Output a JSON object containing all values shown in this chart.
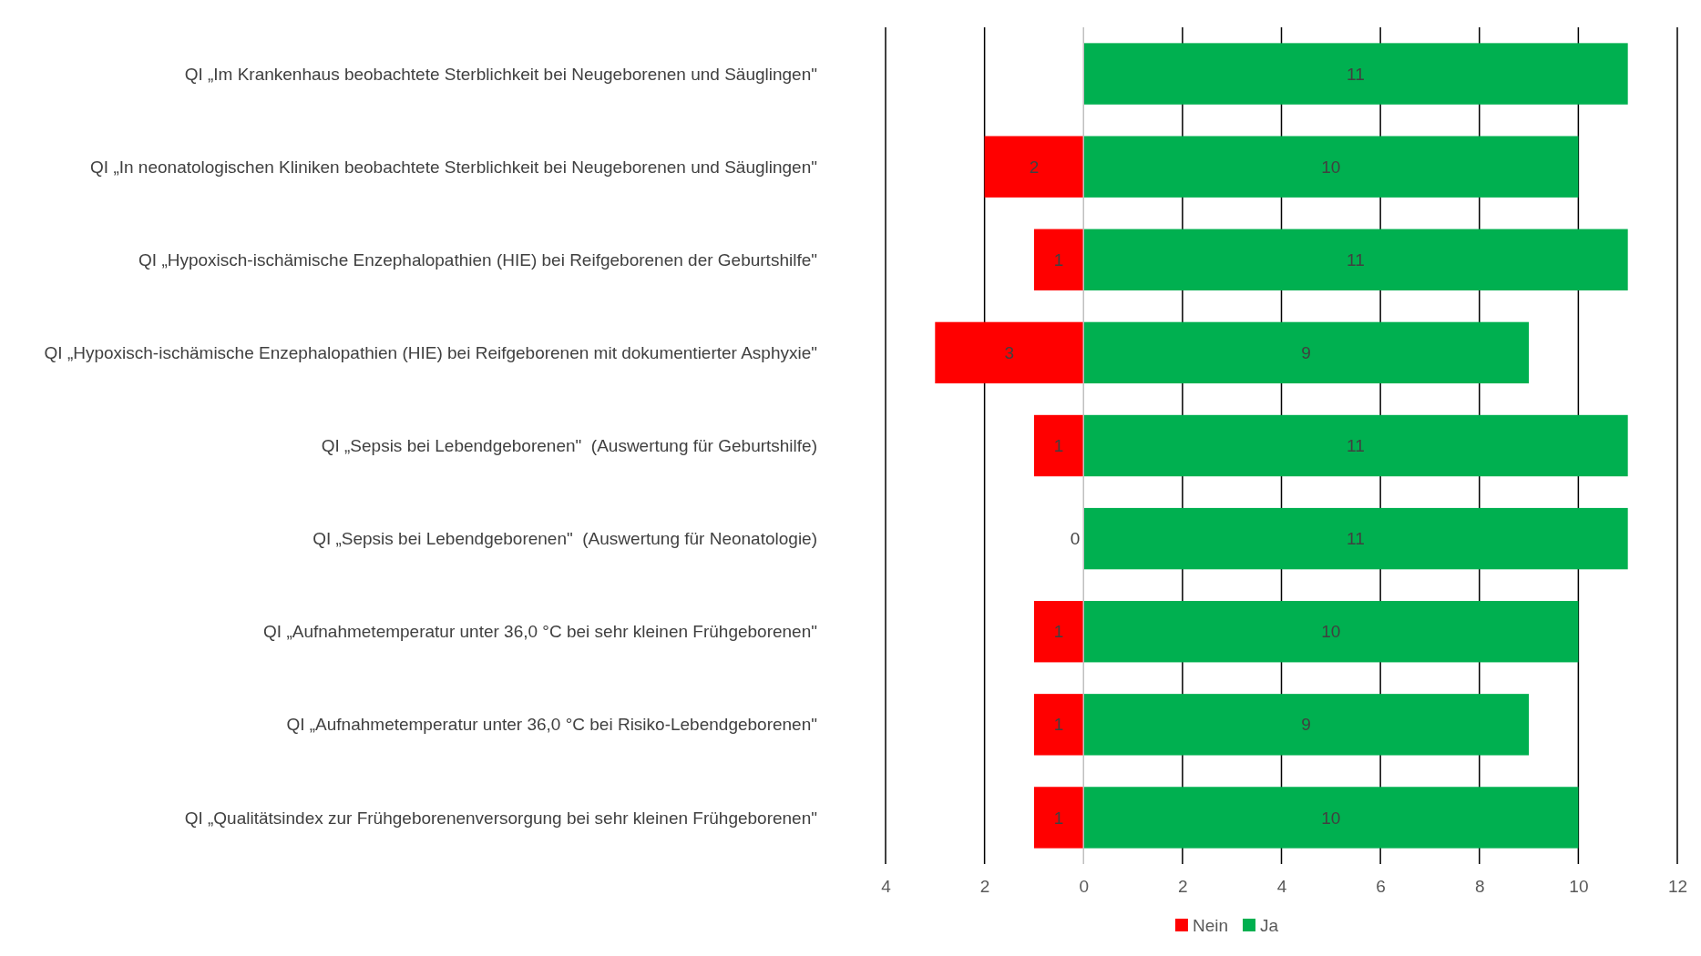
{
  "chart_data": {
    "type": "bar",
    "orientation": "horizontal",
    "categories": [
      "QI „Im Krankenhaus beobachtete Sterblichkeit bei Neugeborenen und Säuglingen\"",
      "QI „In neonatologischen Kliniken beobachtete Sterblichkeit bei Neugeborenen und Säuglingen\"",
      "QI „Hypoxisch-ischämische Enzephalopathien (HIE) bei Reifgeborenen der Geburtshilfe\"",
      "QI „Hypoxisch-ischämische Enzephalopathien (HIE) bei Reifgeborenen mit dokumentierter Asphyxie\"",
      "QI „Sepsis bei Lebendgeborenen\"  (Auswertung für Geburtshilfe)",
      "QI „Sepsis bei Lebendgeborenen\"  (Auswertung für Neonatologie)",
      "QI „Aufnahmetemperatur unter 36,0 °C bei sehr kleinen Frühgeborenen\"",
      "QI „Aufnahmetemperatur unter 36,0 °C bei Risiko-Lebendgeborenen\"",
      "QI „Qualitätsindex zur Frühgeborenenversorgung bei sehr kleinen Frühgeborenen\""
    ],
    "series": [
      {
        "name": "Nein",
        "color": "#ff0000",
        "values": [
          null,
          2,
          1,
          3,
          1,
          0,
          1,
          1,
          1
        ],
        "base": [
          null,
          -2,
          -1,
          -3,
          -1,
          null,
          -1,
          -1,
          -1
        ],
        "value_labels": [
          null,
          "2",
          "1",
          "3",
          "1",
          "0",
          "1",
          "1",
          "1"
        ]
      },
      {
        "name": "Ja",
        "color": "#00b050",
        "values": [
          11,
          10,
          11,
          9,
          11,
          11,
          10,
          9,
          10
        ],
        "value_labels": [
          "11",
          "10",
          "11",
          "9",
          "11",
          "11",
          "10",
          "9",
          "10"
        ]
      }
    ],
    "xlim": [
      -4,
      12
    ],
    "xticks": [
      {
        "value": -4,
        "label": "4"
      },
      {
        "value": -2,
        "label": "2"
      },
      0,
      2,
      4,
      6,
      8,
      10,
      12
    ],
    "grid": "x",
    "legend": "bottom"
  }
}
